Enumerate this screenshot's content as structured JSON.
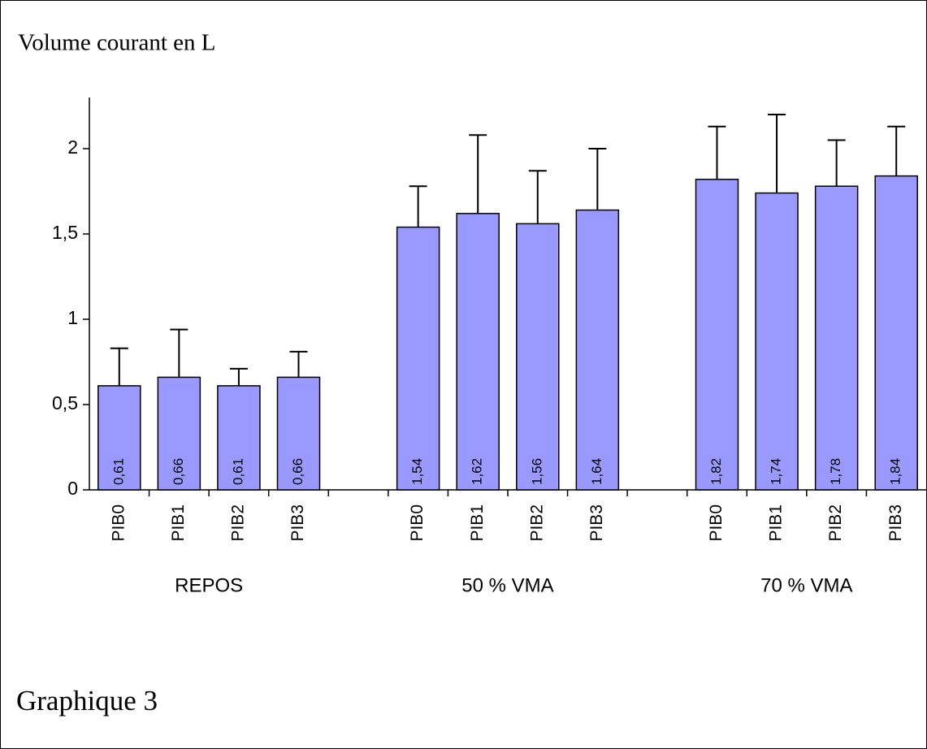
{
  "chart_data": {
    "type": "bar",
    "title": "Volume courant en L",
    "caption": "Graphique 3",
    "categories": [
      "PIB0",
      "PIB1",
      "PIB2",
      "PIB3",
      null,
      "PIB0",
      "PIB1",
      "PIB2",
      "PIB3",
      null,
      "PIB0",
      "PIB1",
      "PIB2",
      "PIB3"
    ],
    "groups": [
      "REPOS",
      "50 % VMA",
      "70 % VMA"
    ],
    "values": [
      0.61,
      0.66,
      0.61,
      0.66,
      null,
      1.54,
      1.62,
      1.56,
      1.64,
      null,
      1.82,
      1.74,
      1.78,
      1.84
    ],
    "value_labels": [
      "0,61",
      "0,66",
      "0,61",
      "0,66",
      null,
      "1,54",
      "1,62",
      "1,56",
      "1,64",
      null,
      "1,82",
      "1,74",
      "1,78",
      "1,84"
    ],
    "errors": [
      0.22,
      0.28,
      0.1,
      0.15,
      null,
      0.24,
      0.46,
      0.31,
      0.36,
      null,
      0.31,
      0.46,
      0.27,
      0.29
    ],
    "color": "#9999ff",
    "ylim": [
      0,
      2.3
    ],
    "yticks": [
      0,
      {
        "value": 0.5,
        "label": "0,5"
      },
      1,
      {
        "value": 1.5,
        "label": "1,5"
      },
      2
    ],
    "grid": false
  }
}
